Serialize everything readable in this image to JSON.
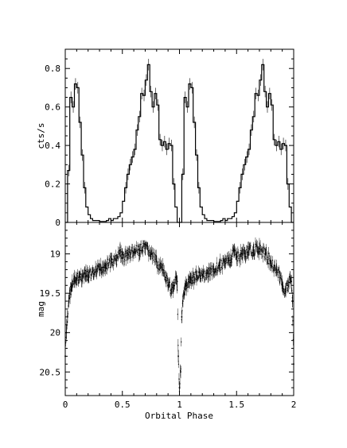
{
  "chart_data": [
    {
      "type": "line",
      "panel": "top",
      "style": "step",
      "ylabel": "cts/s",
      "xlim": [
        0,
        2
      ],
      "ylim": [
        0,
        0.9
      ],
      "yticks": [
        0,
        0.2,
        0.4,
        0.6,
        0.8
      ],
      "ytick_labels": [
        "0",
        "0.2",
        "0.4",
        "0.6",
        "0.8"
      ],
      "grid": false,
      "series": [
        {
          "color": "#000000",
          "x": [
            0.0,
            0.02,
            0.04,
            0.06,
            0.08,
            0.1,
            0.12,
            0.14,
            0.16,
            0.18,
            0.2,
            0.22,
            0.24,
            0.26,
            0.28,
            0.3,
            0.32,
            0.34,
            0.36,
            0.38,
            0.4,
            0.42,
            0.44,
            0.46,
            0.48,
            0.5,
            0.52,
            0.54,
            0.56,
            0.58,
            0.6,
            0.62,
            0.64,
            0.66,
            0.68,
            0.7,
            0.72,
            0.74,
            0.76,
            0.78,
            0.8,
            0.82,
            0.84,
            0.86,
            0.88,
            0.9,
            0.92,
            0.94,
            0.96,
            0.98,
            1.0,
            1.02,
            1.04,
            1.06,
            1.08,
            1.1,
            1.12,
            1.14,
            1.16,
            1.18,
            1.2,
            1.22,
            1.24,
            1.26,
            1.28,
            1.3,
            1.32,
            1.34,
            1.36,
            1.38,
            1.4,
            1.42,
            1.44,
            1.46,
            1.48,
            1.5,
            1.52,
            1.54,
            1.56,
            1.58,
            1.6,
            1.62,
            1.64,
            1.66,
            1.68,
            1.7,
            1.72,
            1.74,
            1.76,
            1.78,
            1.8,
            1.82,
            1.84,
            1.86,
            1.88,
            1.9,
            1.92,
            1.94,
            1.96,
            1.98,
            2.0
          ],
          "y": [
            0.0,
            0.27,
            0.65,
            0.6,
            0.72,
            0.7,
            0.52,
            0.35,
            0.18,
            0.08,
            0.04,
            0.02,
            0.01,
            0.01,
            0.01,
            0.005,
            0.005,
            0.005,
            0.01,
            0.02,
            0.01,
            0.02,
            0.02,
            0.03,
            0.05,
            0.11,
            0.18,
            0.25,
            0.3,
            0.34,
            0.38,
            0.48,
            0.55,
            0.67,
            0.66,
            0.74,
            0.82,
            0.68,
            0.6,
            0.67,
            0.61,
            0.43,
            0.4,
            0.42,
            0.38,
            0.41,
            0.4,
            0.2,
            0.08,
            0.0,
            0.0,
            0.25,
            0.65,
            0.6,
            0.72,
            0.7,
            0.52,
            0.35,
            0.18,
            0.08,
            0.04,
            0.02,
            0.01,
            0.01,
            0.01,
            0.005,
            0.005,
            0.005,
            0.01,
            0.02,
            0.01,
            0.02,
            0.02,
            0.03,
            0.05,
            0.11,
            0.18,
            0.25,
            0.3,
            0.34,
            0.38,
            0.48,
            0.55,
            0.67,
            0.66,
            0.74,
            0.82,
            0.68,
            0.6,
            0.67,
            0.61,
            0.43,
            0.4,
            0.42,
            0.38,
            0.41,
            0.4,
            0.2,
            0.08,
            0.0,
            0.0
          ]
        }
      ]
    },
    {
      "type": "scatter",
      "panel": "bottom",
      "style": "points-with-error-bars",
      "ylabel": "mag",
      "xlabel": "Orbital Phase",
      "xlim": [
        0,
        2
      ],
      "ylim": [
        20.8,
        18.6
      ],
      "inverted_y": true,
      "xticks": [
        0,
        0.5,
        1,
        1.5,
        2
      ],
      "xtick_labels": [
        "0",
        "0.5",
        "1",
        "1.5",
        "2"
      ],
      "yticks": [
        19,
        19.5,
        20,
        20.5
      ],
      "ytick_labels": [
        "19",
        "19.5",
        "20",
        "20.5"
      ],
      "grid": false,
      "series": [
        {
          "color": "#000000",
          "x": [
            0.0,
            0.01,
            0.02,
            0.03,
            0.04,
            0.05,
            0.06,
            0.08,
            0.1,
            0.12,
            0.15,
            0.18,
            0.2,
            0.25,
            0.3,
            0.35,
            0.4,
            0.45,
            0.48,
            0.5,
            0.55,
            0.6,
            0.65,
            0.7,
            0.75,
            0.8,
            0.85,
            0.88,
            0.9,
            0.93,
            0.95,
            0.97,
            0.98,
            0.99,
            1.0,
            1.01,
            1.02,
            1.03,
            1.04,
            1.05,
            1.06,
            1.08,
            1.1,
            1.12,
            1.15,
            1.18,
            1.2,
            1.25,
            1.3,
            1.35,
            1.4,
            1.45,
            1.48,
            1.5,
            1.55,
            1.6,
            1.65,
            1.7,
            1.75,
            1.8,
            1.85,
            1.88,
            1.9,
            1.93,
            1.95,
            1.97,
            1.98,
            1.99,
            2.0
          ],
          "y": [
            20.3,
            20.0,
            19.8,
            19.6,
            19.5,
            19.45,
            19.4,
            19.35,
            19.32,
            19.3,
            19.28,
            19.28,
            19.27,
            19.25,
            19.2,
            19.15,
            19.1,
            19.08,
            18.95,
            19.05,
            19.0,
            18.98,
            18.95,
            18.93,
            19.0,
            19.1,
            19.2,
            19.3,
            19.4,
            19.45,
            19.4,
            19.3,
            19.35,
            20.3,
            20.7,
            20.5,
            19.8,
            19.6,
            19.5,
            19.45,
            19.4,
            19.35,
            19.32,
            19.3,
            19.28,
            19.28,
            19.27,
            19.25,
            19.2,
            19.15,
            19.1,
            19.08,
            18.95,
            19.05,
            19.0,
            18.98,
            18.95,
            18.93,
            19.0,
            19.1,
            19.2,
            19.3,
            19.4,
            19.45,
            19.4,
            19.3,
            19.35,
            19.6,
            20.4
          ]
        }
      ]
    }
  ]
}
